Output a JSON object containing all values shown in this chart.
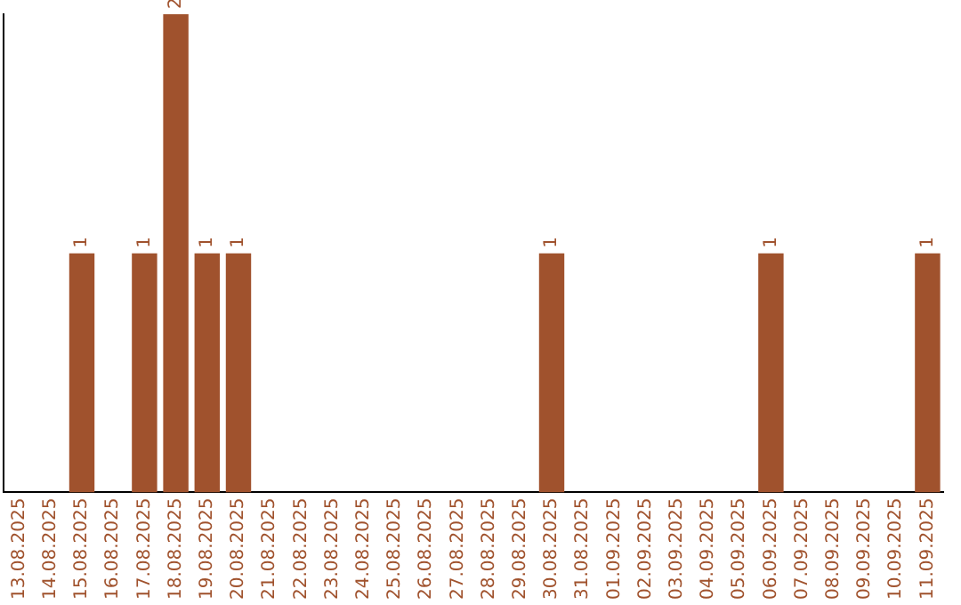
{
  "chart_data": {
    "type": "bar",
    "categories": [
      "13.08.2025",
      "14.08.2025",
      "15.08.2025",
      "16.08.2025",
      "17.08.2025",
      "18.08.2025",
      "19.08.2025",
      "20.08.2025",
      "21.08.2025",
      "22.08.2025",
      "23.08.2025",
      "24.08.2025",
      "25.08.2025",
      "26.08.2025",
      "27.08.2025",
      "28.08.2025",
      "29.08.2025",
      "30.08.2025",
      "31.08.2025",
      "01.09.2025",
      "02.09.2025",
      "03.09.2025",
      "04.09.2025",
      "05.09.2025",
      "06.09.2025",
      "07.09.2025",
      "08.09.2025",
      "09.09.2025",
      "10.09.2025",
      "11.09.2025"
    ],
    "values": [
      0,
      0,
      1,
      0,
      1,
      2,
      1,
      1,
      0,
      0,
      0,
      0,
      0,
      0,
      0,
      0,
      0,
      1,
      0,
      0,
      0,
      0,
      0,
      0,
      1,
      0,
      0,
      0,
      0,
      1
    ],
    "value_labels": [
      null,
      null,
      "1",
      null,
      "1",
      "2",
      "1",
      "1",
      null,
      null,
      null,
      null,
      null,
      null,
      null,
      null,
      null,
      "1",
      null,
      null,
      null,
      null,
      null,
      null,
      "1",
      null,
      null,
      null,
      null,
      "1"
    ],
    "color": "#a0522d",
    "grid": false,
    "legend": false,
    "tick_labels": "x"
  }
}
